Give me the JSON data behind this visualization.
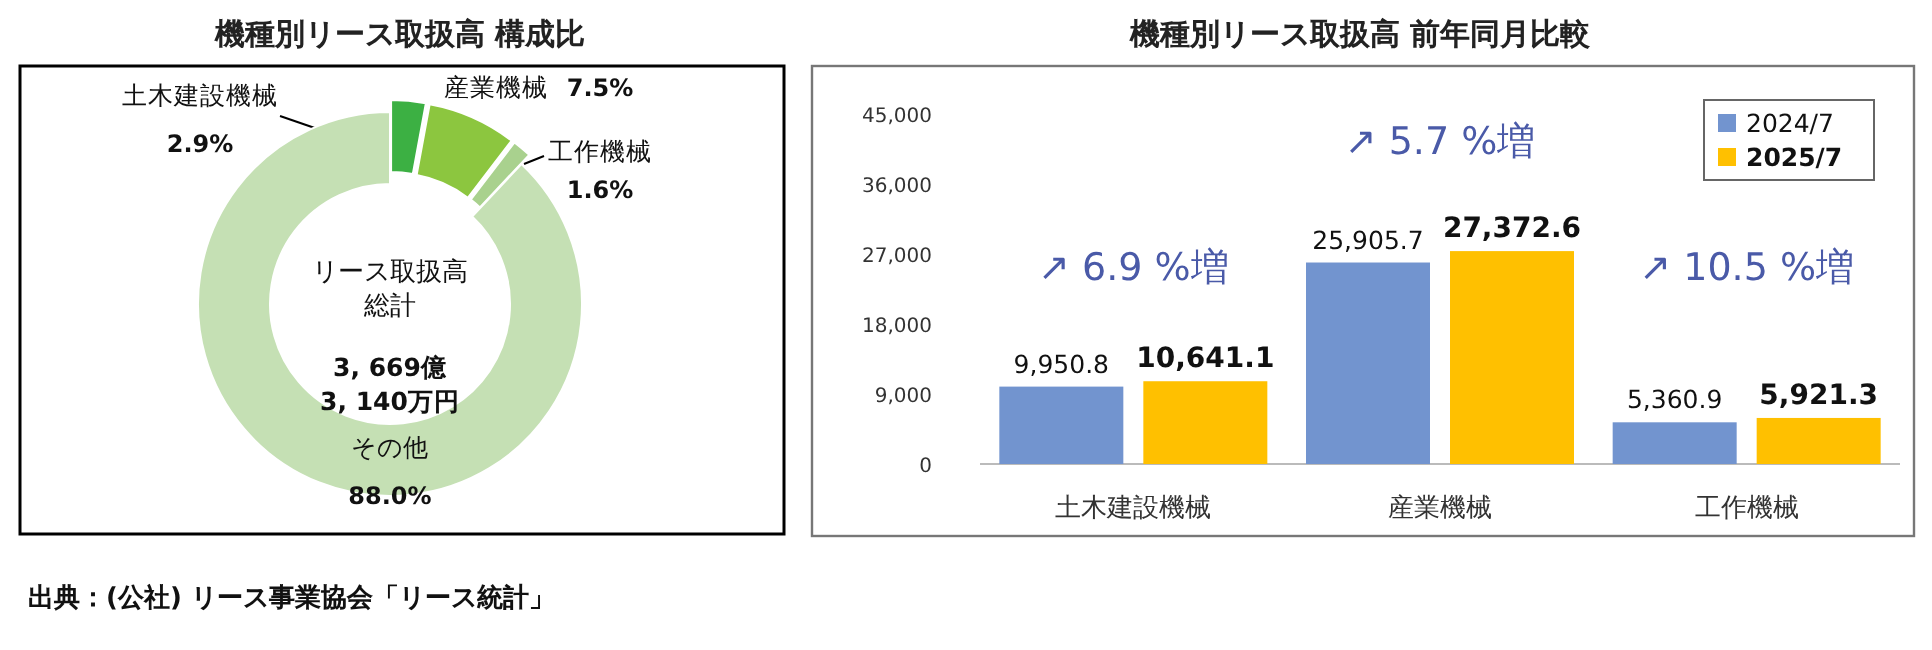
{
  "chart_data": [
    {
      "type": "donut",
      "title": "機種別リース取扱高 構成比",
      "categories": [
        "土木建設機械",
        "産業機械",
        "工作機械",
        "その他"
      ],
      "values": [
        2.9,
        7.5,
        1.6,
        88.0
      ],
      "colors": [
        "#3cb043",
        "#8cc63f",
        "#a9d18e",
        "#c5e0b4"
      ],
      "value_labels": [
        "2.9%",
        "7.5%",
        "1.6%",
        "88.0%"
      ],
      "annotations": [
        "リース取扱高",
        "総計",
        "3, 669億",
        "3, 140万円",
        "出典：(公社) リース事業協会「リース統計」"
      ]
    },
    {
      "type": "bar",
      "title": "機種別リース取扱高 前年同月比較",
      "categories": [
        "土木建設機械",
        "産業機械",
        "工作機械"
      ],
      "series": [
        {
          "name": "2024/7",
          "color": "#7294cf",
          "values": [
            9950.8,
            25905.7,
            5360.9
          ],
          "value_labels": [
            "9,950.8",
            "25,905.7",
            "5,360.9"
          ]
        },
        {
          "name": "2025/7",
          "color": "#ffc000",
          "values": [
            10641.1,
            27372.6,
            5921.3
          ],
          "value_labels": [
            "10,641.1",
            "27,372.6",
            "5,921.3"
          ]
        }
      ],
      "ylim": [
        0,
        45000
      ],
      "yticks": [
        0,
        {
          "value": 9000,
          "label": "9,000"
        },
        {
          "value": 18000,
          "label": "18,000"
        },
        {
          "value": 27000,
          "label": "27,000"
        },
        {
          "value": 36000,
          "label": "36,000"
        },
        {
          "value": 45000,
          "label": "45,000"
        }
      ],
      "legend": "top right",
      "grid": false,
      "annotations": [
        "↗ 6.9 %増",
        "↗ 5.7 %増",
        "↗ 10.5 %増"
      ]
    }
  ]
}
